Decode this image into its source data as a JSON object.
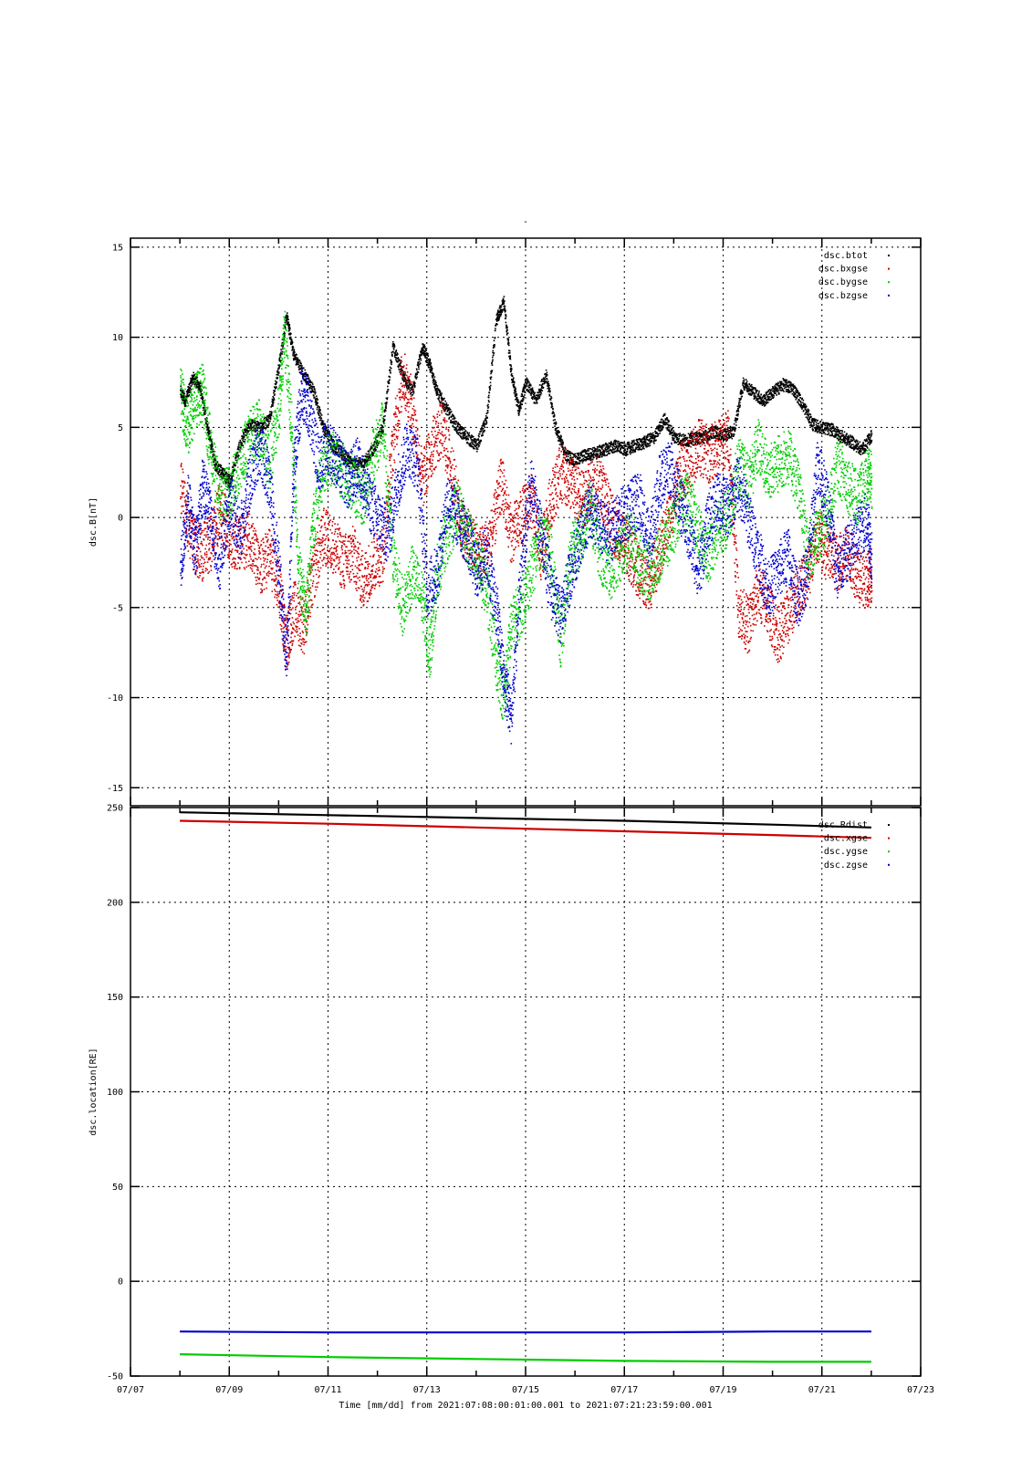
{
  "figure": {
    "title": "-",
    "time_label": "Time [mm/dd]  from 2021:07:08:00:01:00.001  to  2021:07:21:23:59:00.001",
    "x_axis": {
      "min_day": 7,
      "max_day": 23,
      "tick_labels": [
        "07/07",
        "07/09",
        "07/11",
        "07/13",
        "07/15",
        "07/17",
        "07/19",
        "07/21",
        "07/23"
      ],
      "tick_values": [
        7,
        9,
        11,
        13,
        15,
        17,
        19,
        21,
        23
      ],
      "minor_tick_values": [
        8,
        10,
        12,
        14,
        16,
        18,
        20,
        22
      ]
    }
  },
  "chart_data": [
    {
      "type": "scatter",
      "title": "-",
      "ylabel": "dsc.B[nT]",
      "ylim": [
        -16,
        15.5
      ],
      "yticks": [
        15,
        10,
        5,
        0,
        -5,
        -10,
        -15
      ],
      "ytick_labels": [
        "15",
        "10",
        "5",
        "0",
        "-5",
        "-10",
        "-15"
      ],
      "grid": true,
      "legend_position": "top-right",
      "series": [
        {
          "name": "dsc.btot",
          "color": "#000000",
          "x": [
            8.0,
            8.1,
            8.25,
            8.4,
            8.55,
            8.7,
            8.85,
            9.0,
            9.2,
            9.4,
            9.6,
            9.8,
            10.0,
            10.15,
            10.3,
            10.5,
            10.7,
            10.9,
            11.1,
            11.3,
            11.5,
            11.7,
            11.9,
            12.1,
            12.3,
            12.5,
            12.7,
            12.9,
            13.05,
            13.2,
            13.4,
            13.6,
            13.8,
            14.0,
            14.2,
            14.4,
            14.55,
            14.7,
            14.85,
            15.0,
            15.2,
            15.4,
            15.6,
            15.8,
            16.0,
            16.2,
            16.4,
            16.6,
            16.8,
            17.0,
            17.2,
            17.4,
            17.6,
            17.8,
            18.0,
            18.2,
            18.4,
            18.6,
            18.8,
            19.0,
            19.2,
            19.4,
            19.6,
            19.8,
            20.0,
            20.2,
            20.4,
            20.6,
            20.8,
            21.0,
            21.2,
            21.4,
            21.6,
            21.8,
            22.0
          ],
          "y": [
            7.0,
            6.5,
            7.8,
            7.2,
            5.0,
            3.0,
            2.5,
            2.0,
            4.0,
            5.2,
            5.0,
            5.5,
            8.5,
            11.2,
            9.0,
            8.0,
            7.0,
            5.0,
            4.0,
            3.5,
            3.0,
            3.0,
            3.8,
            5.0,
            9.5,
            8.0,
            7.0,
            9.5,
            8.5,
            7.0,
            6.0,
            5.0,
            4.5,
            4.0,
            5.5,
            11.0,
            12.0,
            8.0,
            6.0,
            7.5,
            6.5,
            8.0,
            5.0,
            3.5,
            3.2,
            3.5,
            3.6,
            3.8,
            4.0,
            3.8,
            4.0,
            4.2,
            4.5,
            5.5,
            4.5,
            4.3,
            4.4,
            4.5,
            4.8,
            4.6,
            4.8,
            7.5,
            7.0,
            6.5,
            7.0,
            7.4,
            7.2,
            6.3,
            5.2,
            5.0,
            4.9,
            4.5,
            4.2,
            3.8,
            4.6
          ]
        },
        {
          "name": "dsc.bxgse",
          "color": "#cc0000",
          "x": [
            8.0,
            8.2,
            8.4,
            8.6,
            8.8,
            9.0,
            9.2,
            9.4,
            9.6,
            9.8,
            10.0,
            10.15,
            10.3,
            10.5,
            10.7,
            10.9,
            11.1,
            11.3,
            11.5,
            11.7,
            11.9,
            12.1,
            12.3,
            12.5,
            12.7,
            12.9,
            13.1,
            13.3,
            13.5,
            13.7,
            13.9,
            14.1,
            14.3,
            14.5,
            14.7,
            14.9,
            15.1,
            15.3,
            15.5,
            15.7,
            15.9,
            16.1,
            16.3,
            16.5,
            16.7,
            16.9,
            17.1,
            17.3,
            17.5,
            17.7,
            17.9,
            18.1,
            18.3,
            18.5,
            18.7,
            18.9,
            19.1,
            19.3,
            19.5,
            19.7,
            19.9,
            20.1,
            20.3,
            20.5,
            20.7,
            20.9,
            21.1,
            21.3,
            21.5,
            21.7,
            21.9,
            22.0
          ],
          "y": [
            2.0,
            -1.0,
            -2.0,
            -1.5,
            0.5,
            -1.0,
            -1.5,
            -1.0,
            -3.0,
            -2.0,
            -4.0,
            -7.0,
            -5.0,
            -6.0,
            -3.0,
            -1.0,
            -1.5,
            -2.5,
            -2.0,
            -3.5,
            -2.5,
            -2.0,
            4.0,
            8.0,
            6.0,
            2.0,
            4.0,
            5.0,
            2.5,
            -0.5,
            -1.5,
            -2.0,
            -1.0,
            2.0,
            -1.0,
            0.0,
            1.0,
            -2.0,
            1.0,
            2.5,
            2.0,
            1.0,
            1.5,
            2.0,
            0.0,
            -1.0,
            -2.0,
            -3.0,
            -3.5,
            -2.0,
            0.0,
            2.5,
            3.0,
            4.0,
            3.5,
            4.0,
            4.5,
            -5.0,
            -6.0,
            -4.0,
            -5.0,
            -6.5,
            -5.5,
            -4.0,
            -3.0,
            -1.0,
            -2.0,
            -2.5,
            -2.0,
            -3.0,
            -3.5,
            -3.2
          ]
        },
        {
          "name": "dsc.bygse",
          "color": "#00cc00",
          "x": [
            8.0,
            8.15,
            8.3,
            8.45,
            8.6,
            8.8,
            9.0,
            9.2,
            9.4,
            9.6,
            9.8,
            10.0,
            10.1,
            10.25,
            10.4,
            10.55,
            10.7,
            10.9,
            11.1,
            11.3,
            11.5,
            11.7,
            11.9,
            12.1,
            12.3,
            12.5,
            12.7,
            12.9,
            13.05,
            13.2,
            13.4,
            13.6,
            13.8,
            14.0,
            14.2,
            14.4,
            14.55,
            14.7,
            14.9,
            15.1,
            15.3,
            15.5,
            15.7,
            15.9,
            16.1,
            16.3,
            16.5,
            16.7,
            16.9,
            17.1,
            17.3,
            17.5,
            17.7,
            17.9,
            18.1,
            18.3,
            18.5,
            18.7,
            18.9,
            19.1,
            19.3,
            19.5,
            19.7,
            19.9,
            20.1,
            20.3,
            20.5,
            20.7,
            20.9,
            21.1,
            21.3,
            21.5,
            21.7,
            21.9,
            22.0
          ],
          "y": [
            7.0,
            5.0,
            6.5,
            7.0,
            4.0,
            1.0,
            1.5,
            3.0,
            4.5,
            5.0,
            3.0,
            6.0,
            10.5,
            5.0,
            -3.0,
            -5.0,
            0.0,
            3.0,
            3.5,
            2.5,
            2.0,
            1.0,
            3.5,
            5.0,
            -2.0,
            -5.0,
            -3.0,
            -4.5,
            -7.5,
            -3.0,
            -1.0,
            0.5,
            -1.0,
            -2.0,
            -4.0,
            -8.0,
            -10.0,
            -6.0,
            -5.0,
            -3.0,
            -1.0,
            -2.0,
            -7.0,
            -2.0,
            -1.0,
            0.5,
            -2.0,
            -3.0,
            -2.0,
            -1.0,
            -2.5,
            -3.0,
            -2.0,
            -1.0,
            0.5,
            1.0,
            -1.0,
            -2.0,
            -0.5,
            0.0,
            3.0,
            2.0,
            4.0,
            2.5,
            3.0,
            3.5,
            2.0,
            -2.0,
            -1.0,
            0.0,
            3.0,
            2.0,
            1.0,
            2.5,
            2.0
          ]
        },
        {
          "name": "dsc.bzgse",
          "color": "#0000cc",
          "x": [
            8.0,
            8.15,
            8.3,
            8.45,
            8.6,
            8.8,
            9.0,
            9.2,
            9.4,
            9.6,
            9.8,
            10.0,
            10.15,
            10.3,
            10.45,
            10.6,
            10.8,
            11.0,
            11.2,
            11.4,
            11.6,
            11.8,
            12.0,
            12.2,
            12.4,
            12.6,
            12.8,
            13.0,
            13.2,
            13.4,
            13.6,
            13.8,
            14.0,
            14.2,
            14.4,
            14.55,
            14.7,
            14.9,
            15.1,
            15.3,
            15.5,
            15.7,
            15.9,
            16.1,
            16.3,
            16.5,
            16.7,
            16.9,
            17.1,
            17.3,
            17.5,
            17.7,
            17.9,
            18.1,
            18.3,
            18.5,
            18.7,
            18.9,
            19.1,
            19.3,
            19.5,
            19.7,
            19.9,
            20.1,
            20.3,
            20.5,
            20.7,
            20.9,
            21.1,
            21.3,
            21.5,
            21.7,
            21.9,
            22.0
          ],
          "y": [
            -3.0,
            1.0,
            -2.0,
            2.0,
            0.0,
            -2.5,
            1.0,
            -1.0,
            2.0,
            4.0,
            2.0,
            -3.0,
            -8.0,
            3.0,
            7.0,
            6.0,
            3.0,
            4.0,
            3.0,
            2.0,
            3.0,
            1.0,
            0.0,
            -1.0,
            2.0,
            4.0,
            3.0,
            -4.0,
            -3.0,
            1.0,
            0.0,
            -1.0,
            -3.0,
            -2.0,
            -5.0,
            -9.0,
            -11.0,
            -3.0,
            2.0,
            -1.0,
            -4.0,
            -5.5,
            -3.0,
            -1.0,
            0.5,
            -0.5,
            -1.0,
            0.0,
            0.5,
            1.0,
            -1.5,
            2.0,
            3.0,
            1.0,
            -1.0,
            -3.0,
            0.0,
            1.0,
            0.5,
            2.0,
            0.0,
            -2.0,
            -4.0,
            -3.0,
            -2.0,
            -4.5,
            -3.0,
            3.0,
            1.0,
            -3.0,
            -2.0,
            -1.0,
            0.0,
            -2.5
          ]
        }
      ]
    },
    {
      "type": "line",
      "ylabel": "dsc.location[RE]",
      "ylim": [
        -50,
        250
      ],
      "yticks": [
        250,
        200,
        150,
        100,
        50,
        0,
        -50
      ],
      "ytick_labels": [
        "250",
        "200",
        "150",
        "100",
        "50",
        "0",
        "-50"
      ],
      "grid": true,
      "legend_position": "top-right",
      "series": [
        {
          "name": "dsc.Rdist",
          "color": "#000000",
          "x": [
            8.0,
            11.0,
            14.0,
            17.0,
            20.0,
            22.0
          ],
          "y": [
            247.5,
            246.0,
            244.5,
            243.0,
            241.0,
            239.5
          ]
        },
        {
          "name": "dsc.xgse",
          "color": "#cc0000",
          "x": [
            8.0,
            11.0,
            14.0,
            17.0,
            20.0,
            22.0
          ],
          "y": [
            243.0,
            241.5,
            239.5,
            237.5,
            235.5,
            234.0
          ]
        },
        {
          "name": "dsc.ygse",
          "color": "#00cc00",
          "x": [
            8.0,
            11.0,
            14.0,
            17.0,
            20.0,
            22.0
          ],
          "y": [
            -38.5,
            -40.0,
            -41.0,
            -42.0,
            -42.5,
            -42.5
          ]
        },
        {
          "name": "dsc.zgse",
          "color": "#0000cc",
          "x": [
            8.0,
            11.0,
            14.0,
            17.0,
            20.0,
            22.0
          ],
          "y": [
            -26.5,
            -27.0,
            -27.0,
            -27.0,
            -26.5,
            -26.5
          ]
        }
      ]
    }
  ]
}
